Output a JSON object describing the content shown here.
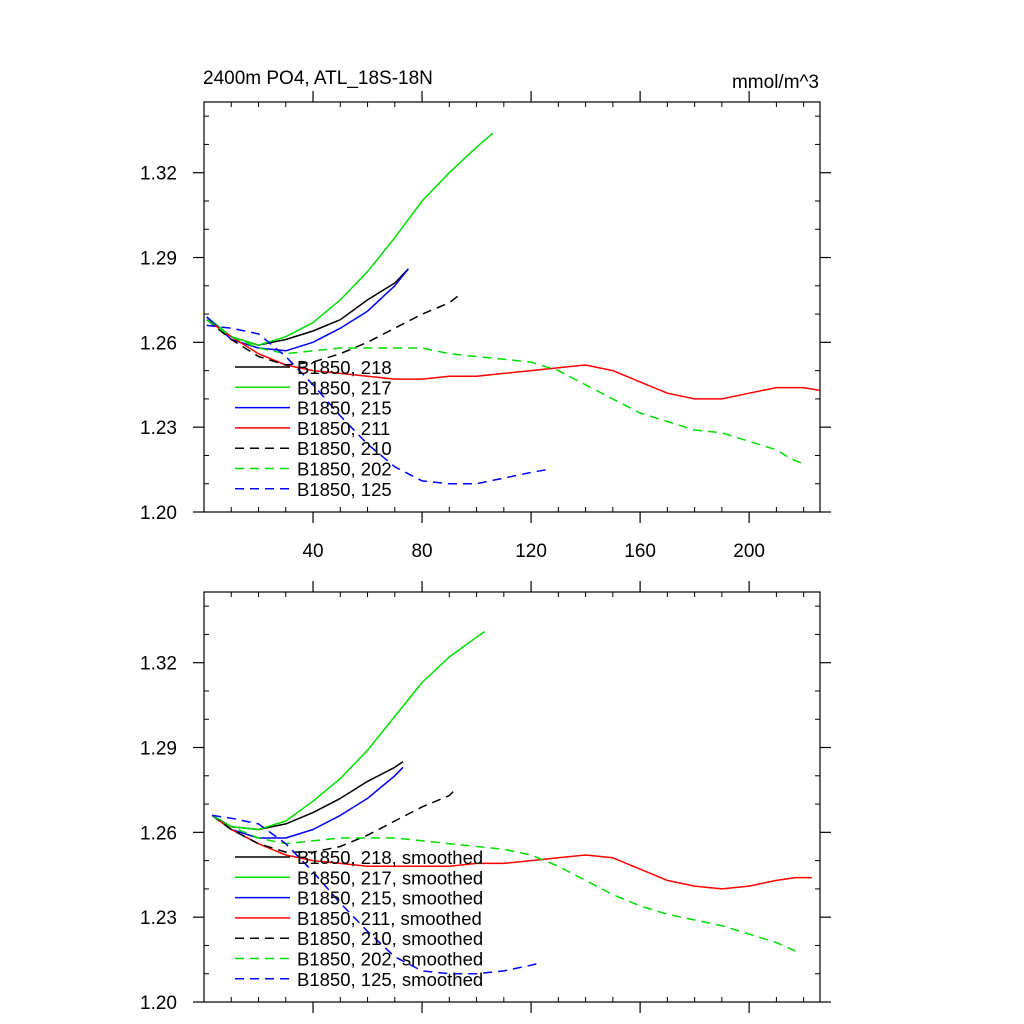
{
  "figure": {
    "title": "2400m PO4, ATL_18S-18N",
    "units": "mmol/m^3"
  },
  "chart_data": [
    {
      "type": "line",
      "title": "2400m PO4, ATL_18S-18N",
      "units": "mmol/m^3",
      "xlim": [
        0,
        226
      ],
      "ylim": [
        1.2,
        1.345
      ],
      "xticks": [
        40,
        80,
        120,
        160,
        200
      ],
      "xtick_labels": [
        "40",
        "80",
        "120",
        "160",
        "200"
      ],
      "yticks": [
        1.2,
        1.23,
        1.26,
        1.29,
        1.32
      ],
      "ytick_labels": [
        "1.20",
        "1.23",
        "1.26",
        "1.29",
        "1.32"
      ],
      "show_xtick_labels": true,
      "grid": false,
      "legend_position": "bottom-left",
      "series": [
        {
          "name": "B1850, 218",
          "color": "#000000",
          "dash": "solid",
          "x": [
            1,
            10,
            20,
            30,
            40,
            50,
            60,
            70,
            75
          ],
          "y": [
            1.269,
            1.262,
            1.259,
            1.261,
            1.264,
            1.268,
            1.275,
            1.281,
            1.286
          ]
        },
        {
          "name": "B1850, 217",
          "color": "#00dd00",
          "dash": "solid",
          "x": [
            1,
            10,
            20,
            30,
            40,
            50,
            60,
            70,
            80,
            90,
            100,
            106
          ],
          "y": [
            1.269,
            1.262,
            1.259,
            1.262,
            1.267,
            1.275,
            1.285,
            1.297,
            1.31,
            1.32,
            1.329,
            1.334
          ]
        },
        {
          "name": "B1850, 215",
          "color": "#0000ff",
          "dash": "solid",
          "x": [
            1,
            10,
            20,
            30,
            40,
            50,
            60,
            70,
            75
          ],
          "y": [
            1.269,
            1.261,
            1.258,
            1.257,
            1.26,
            1.265,
            1.271,
            1.28,
            1.286
          ]
        },
        {
          "name": "B1850, 211",
          "color": "#ff0000",
          "dash": "solid",
          "x": [
            1,
            10,
            20,
            30,
            40,
            50,
            60,
            70,
            80,
            90,
            100,
            110,
            120,
            130,
            140,
            150,
            160,
            170,
            180,
            190,
            200,
            210,
            220,
            226
          ],
          "y": [
            1.268,
            1.262,
            1.256,
            1.252,
            1.25,
            1.249,
            1.248,
            1.247,
            1.247,
            1.248,
            1.248,
            1.249,
            1.25,
            1.251,
            1.252,
            1.25,
            1.246,
            1.242,
            1.24,
            1.24,
            1.242,
            1.244,
            1.244,
            1.243
          ]
        },
        {
          "name": "B1850, 210",
          "color": "#000000",
          "dash": "dashed",
          "x": [
            1,
            10,
            20,
            30,
            40,
            50,
            60,
            70,
            80,
            90,
            94
          ],
          "y": [
            1.268,
            1.261,
            1.255,
            1.252,
            1.253,
            1.256,
            1.26,
            1.265,
            1.27,
            1.274,
            1.277
          ]
        },
        {
          "name": "B1850, 202",
          "color": "#00dd00",
          "dash": "dashed",
          "x": [
            1,
            10,
            20,
            30,
            40,
            50,
            60,
            70,
            80,
            90,
            100,
            110,
            120,
            130,
            140,
            150,
            160,
            170,
            180,
            190,
            200,
            210,
            215,
            220
          ],
          "y": [
            1.268,
            1.262,
            1.258,
            1.256,
            1.257,
            1.258,
            1.258,
            1.258,
            1.258,
            1.256,
            1.255,
            1.254,
            1.253,
            1.25,
            1.245,
            1.24,
            1.235,
            1.232,
            1.229,
            1.228,
            1.225,
            1.222,
            1.219,
            1.217
          ]
        },
        {
          "name": "B1850, 125",
          "color": "#0000ff",
          "dash": "dashed",
          "x": [
            1,
            10,
            20,
            30,
            40,
            50,
            60,
            70,
            80,
            90,
            100,
            110,
            120,
            126
          ],
          "y": [
            1.266,
            1.265,
            1.263,
            1.255,
            1.245,
            1.234,
            1.224,
            1.216,
            1.211,
            1.21,
            1.21,
            1.212,
            1.214,
            1.215
          ]
        }
      ]
    },
    {
      "type": "line",
      "xlim": [
        0,
        226
      ],
      "ylim": [
        1.2,
        1.345
      ],
      "xticks": [
        40,
        80,
        120,
        160,
        200
      ],
      "yticks": [
        1.2,
        1.23,
        1.26,
        1.29,
        1.32
      ],
      "ytick_labels": [
        "1.20",
        "1.23",
        "1.26",
        "1.29",
        "1.32"
      ],
      "show_xtick_labels": false,
      "grid": false,
      "legend_position": "bottom-left",
      "series": [
        {
          "name": "B1850, 218, smoothed",
          "color": "#000000",
          "dash": "solid",
          "x": [
            3,
            10,
            20,
            30,
            40,
            50,
            60,
            70,
            73
          ],
          "y": [
            1.266,
            1.262,
            1.261,
            1.263,
            1.267,
            1.272,
            1.278,
            1.283,
            1.285
          ]
        },
        {
          "name": "B1850, 217, smoothed",
          "color": "#00dd00",
          "dash": "solid",
          "x": [
            3,
            10,
            20,
            30,
            40,
            50,
            60,
            70,
            80,
            90,
            100,
            103
          ],
          "y": [
            1.266,
            1.262,
            1.261,
            1.264,
            1.271,
            1.279,
            1.289,
            1.301,
            1.313,
            1.322,
            1.329,
            1.331
          ]
        },
        {
          "name": "B1850, 215, smoothed",
          "color": "#0000ff",
          "dash": "solid",
          "x": [
            3,
            10,
            20,
            30,
            40,
            50,
            60,
            70,
            73
          ],
          "y": [
            1.266,
            1.261,
            1.258,
            1.258,
            1.261,
            1.266,
            1.272,
            1.28,
            1.283
          ]
        },
        {
          "name": "B1850, 211, smoothed",
          "color": "#ff0000",
          "dash": "solid",
          "x": [
            3,
            10,
            20,
            30,
            40,
            50,
            60,
            70,
            80,
            90,
            100,
            110,
            120,
            130,
            140,
            150,
            160,
            170,
            180,
            190,
            200,
            210,
            217,
            223
          ],
          "y": [
            1.266,
            1.261,
            1.256,
            1.252,
            1.25,
            1.249,
            1.248,
            1.248,
            1.248,
            1.248,
            1.249,
            1.249,
            1.25,
            1.251,
            1.252,
            1.251,
            1.247,
            1.243,
            1.241,
            1.24,
            1.241,
            1.243,
            1.244,
            1.244
          ]
        },
        {
          "name": "B1850, 210, smoothed",
          "color": "#000000",
          "dash": "dashed",
          "x": [
            3,
            10,
            20,
            30,
            40,
            50,
            60,
            70,
            80,
            90,
            92
          ],
          "y": [
            1.266,
            1.261,
            1.256,
            1.253,
            1.253,
            1.255,
            1.259,
            1.264,
            1.269,
            1.273,
            1.275
          ]
        },
        {
          "name": "B1850, 202, smoothed",
          "color": "#00dd00",
          "dash": "dashed",
          "x": [
            3,
            10,
            20,
            30,
            40,
            50,
            60,
            70,
            80,
            90,
            100,
            110,
            120,
            130,
            140,
            150,
            160,
            170,
            180,
            190,
            200,
            210,
            217
          ],
          "y": [
            1.266,
            1.262,
            1.258,
            1.256,
            1.257,
            1.258,
            1.258,
            1.258,
            1.257,
            1.256,
            1.255,
            1.254,
            1.252,
            1.248,
            1.243,
            1.238,
            1.234,
            1.231,
            1.229,
            1.227,
            1.224,
            1.221,
            1.218
          ]
        },
        {
          "name": "B1850, 125, smoothed",
          "color": "#0000ff",
          "dash": "dashed",
          "x": [
            3,
            10,
            20,
            30,
            40,
            50,
            60,
            70,
            80,
            90,
            100,
            110,
            120,
            124
          ],
          "y": [
            1.266,
            1.265,
            1.263,
            1.256,
            1.246,
            1.235,
            1.225,
            1.216,
            1.211,
            1.21,
            1.21,
            1.211,
            1.213,
            1.214
          ]
        }
      ]
    }
  ]
}
